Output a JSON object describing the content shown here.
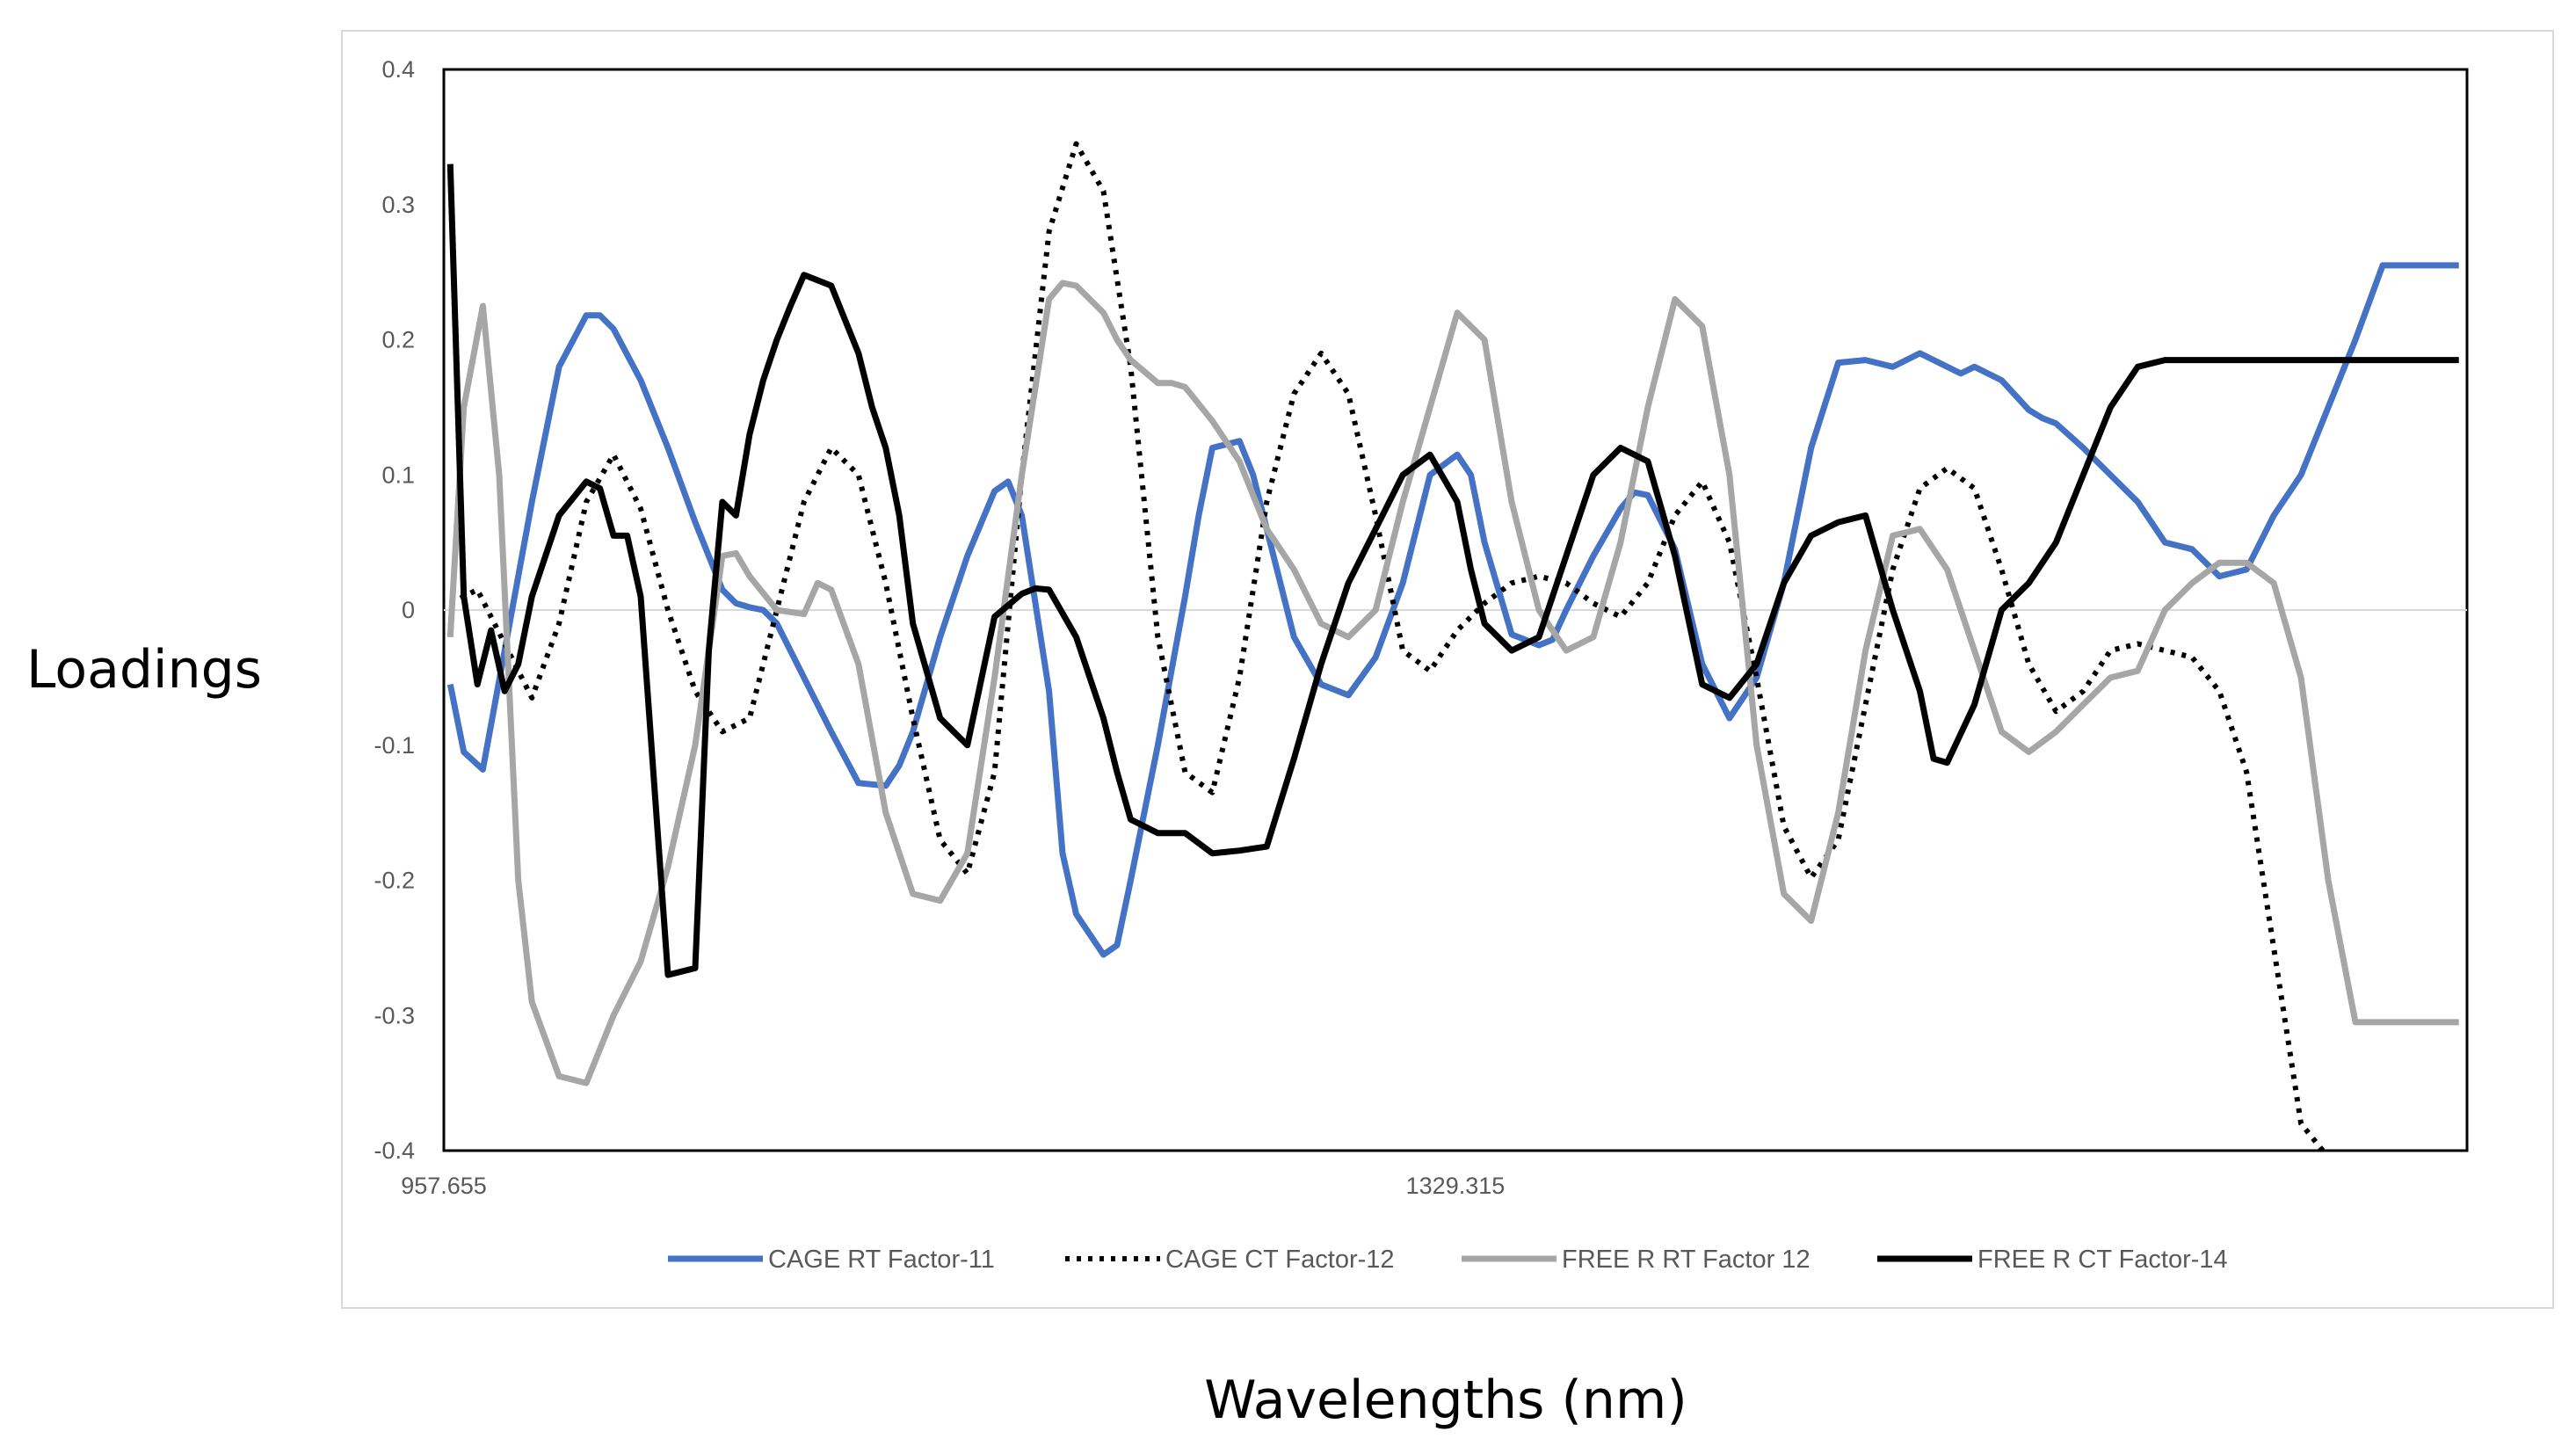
{
  "chart_data": {
    "type": "line",
    "title": "",
    "xlabel": "Wavelengths (nm)",
    "ylabel": "Loadings",
    "xlim": [
      957.655,
      1701.0
    ],
    "ylim": [
      -0.4,
      0.4
    ],
    "y_ticks": [
      "0.4",
      "0.3",
      "0.2",
      "0.1",
      "0",
      "-0.1",
      "-0.2",
      "-0.3",
      "-0.4"
    ],
    "y_tick_values": [
      0.4,
      0.3,
      0.2,
      0.1,
      0,
      -0.1,
      -0.2,
      -0.3,
      -0.4
    ],
    "x_ticks": [
      "957.655",
      "1329.315"
    ],
    "x_tick_values": [
      957.655,
      1329.315
    ],
    "grid": false,
    "legend": "bottom",
    "series": [
      {
        "name": "CAGE RT Factor-11",
        "color": "#4472c4",
        "style": "solid",
        "x": [
          960,
          965,
          972,
          980,
          990,
          1000,
          1010,
          1015,
          1020,
          1030,
          1040,
          1050,
          1060,
          1065,
          1070,
          1075,
          1080,
          1090,
          1100,
          1110,
          1120,
          1125,
          1130,
          1140,
          1150,
          1160,
          1165,
          1170,
          1180,
          1185,
          1190,
          1200,
          1205,
          1210,
          1220,
          1230,
          1235,
          1240,
          1250,
          1255,
          1260,
          1270,
          1280,
          1290,
          1300,
          1310,
          1315,
          1320,
          1330,
          1335,
          1340,
          1350,
          1360,
          1365,
          1370,
          1380,
          1390,
          1395,
          1400,
          1410,
          1420,
          1430,
          1440,
          1450,
          1455,
          1460,
          1470,
          1480,
          1490,
          1500,
          1510,
          1515,
          1520,
          1530,
          1540,
          1545,
          1550,
          1560,
          1570,
          1580,
          1590,
          1600,
          1610,
          1620,
          1630,
          1640,
          1650,
          1660,
          1670,
          1680,
          1690,
          1698
        ],
        "y": [
          -0.055,
          -0.105,
          -0.118,
          -0.03,
          0.08,
          0.18,
          0.218,
          0.218,
          0.208,
          0.17,
          0.12,
          0.065,
          0.015,
          0.005,
          0.002,
          0.0,
          -0.01,
          -0.05,
          -0.09,
          -0.128,
          -0.13,
          -0.115,
          -0.09,
          -0.02,
          0.04,
          0.088,
          0.095,
          0.07,
          -0.06,
          -0.18,
          -0.225,
          -0.255,
          -0.248,
          -0.2,
          -0.1,
          0.01,
          0.07,
          0.12,
          0.125,
          0.1,
          0.06,
          -0.02,
          -0.055,
          -0.063,
          -0.035,
          0.02,
          0.06,
          0.1,
          0.115,
          0.1,
          0.05,
          -0.018,
          -0.026,
          -0.022,
          0.0,
          0.04,
          0.075,
          0.087,
          0.085,
          0.045,
          -0.04,
          -0.08,
          -0.05,
          0.02,
          0.07,
          0.12,
          0.183,
          0.185,
          0.18,
          0.19,
          0.18,
          0.175,
          0.18,
          0.17,
          0.148,
          0.142,
          0.138,
          0.12,
          0.1,
          0.08,
          0.05,
          0.045,
          0.025,
          0.03,
          0.07,
          0.1,
          0.15,
          0.2,
          0.255,
          0.255,
          0.255,
          0.255
        ]
      },
      {
        "name": "CAGE CT Factor-12",
        "color": "#000000",
        "style": "dotted",
        "x": [
          960,
          970,
          980,
          990,
          1000,
          1010,
          1020,
          1030,
          1040,
          1050,
          1060,
          1070,
          1080,
          1090,
          1100,
          1110,
          1120,
          1130,
          1140,
          1150,
          1160,
          1170,
          1180,
          1190,
          1200,
          1210,
          1220,
          1230,
          1240,
          1250,
          1260,
          1270,
          1280,
          1290,
          1300,
          1310,
          1320,
          1330,
          1340,
          1350,
          1360,
          1370,
          1380,
          1390,
          1400,
          1410,
          1420,
          1430,
          1440,
          1450,
          1460,
          1470,
          1480,
          1490,
          1500,
          1510,
          1520,
          1530,
          1540,
          1550,
          1560,
          1570,
          1580,
          1590,
          1600,
          1610,
          1620,
          1630,
          1640,
          1650,
          1660,
          1670,
          1680,
          1690,
          1698
        ],
        "y": [
          0.005,
          0.015,
          -0.025,
          -0.065,
          -0.01,
          0.08,
          0.115,
          0.075,
          0.0,
          -0.06,
          -0.09,
          -0.08,
          0.0,
          0.08,
          0.12,
          0.1,
          0.02,
          -0.08,
          -0.17,
          -0.195,
          -0.12,
          0.1,
          0.28,
          0.345,
          0.31,
          0.18,
          -0.02,
          -0.12,
          -0.135,
          -0.05,
          0.08,
          0.16,
          0.19,
          0.16,
          0.07,
          -0.03,
          -0.045,
          -0.015,
          0.005,
          0.02,
          0.025,
          0.02,
          0.005,
          -0.005,
          0.02,
          0.07,
          0.095,
          0.05,
          -0.05,
          -0.16,
          -0.198,
          -0.17,
          -0.07,
          0.03,
          0.09,
          0.105,
          0.09,
          0.03,
          -0.04,
          -0.075,
          -0.06,
          -0.03,
          -0.025,
          -0.03,
          -0.035,
          -0.06,
          -0.12,
          -0.25,
          -0.38,
          -0.405,
          -0.405,
          -0.405,
          -0.405,
          -0.405,
          -0.405
        ]
      },
      {
        "name": "FREE R RT Factor 12",
        "color": "#a6a6a6",
        "style": "solid",
        "x": [
          960,
          965,
          972,
          978,
          985,
          990,
          1000,
          1010,
          1020,
          1030,
          1040,
          1050,
          1060,
          1065,
          1070,
          1080,
          1090,
          1095,
          1100,
          1110,
          1120,
          1130,
          1140,
          1150,
          1160,
          1170,
          1180,
          1185,
          1190,
          1200,
          1205,
          1210,
          1220,
          1225,
          1230,
          1240,
          1250,
          1260,
          1270,
          1280,
          1290,
          1300,
          1310,
          1320,
          1330,
          1340,
          1345,
          1350,
          1360,
          1370,
          1380,
          1390,
          1400,
          1410,
          1420,
          1430,
          1440,
          1450,
          1460,
          1470,
          1480,
          1490,
          1500,
          1510,
          1520,
          1530,
          1540,
          1550,
          1560,
          1570,
          1580,
          1590,
          1600,
          1610,
          1620,
          1630,
          1640,
          1650,
          1660,
          1670,
          1680,
          1690,
          1698
        ],
        "y": [
          -0.02,
          0.15,
          0.225,
          0.1,
          -0.2,
          -0.29,
          -0.345,
          -0.35,
          -0.3,
          -0.26,
          -0.19,
          -0.1,
          0.04,
          0.042,
          0.025,
          0.0,
          -0.003,
          0.02,
          0.015,
          -0.04,
          -0.15,
          -0.21,
          -0.215,
          -0.18,
          -0.05,
          0.1,
          0.23,
          0.242,
          0.24,
          0.22,
          0.2,
          0.185,
          0.168,
          0.168,
          0.165,
          0.14,
          0.11,
          0.06,
          0.03,
          -0.01,
          -0.02,
          0.0,
          0.08,
          0.15,
          0.22,
          0.2,
          0.14,
          0.08,
          0.0,
          -0.03,
          -0.02,
          0.05,
          0.15,
          0.23,
          0.21,
          0.1,
          -0.1,
          -0.21,
          -0.23,
          -0.15,
          -0.03,
          0.055,
          0.06,
          0.03,
          -0.03,
          -0.09,
          -0.105,
          -0.09,
          -0.07,
          -0.05,
          -0.045,
          0.0,
          0.02,
          0.035,
          0.035,
          0.02,
          -0.05,
          -0.2,
          -0.305,
          -0.305,
          -0.305,
          -0.305,
          -0.305
        ]
      },
      {
        "name": "FREE R CT Factor-14",
        "color": "#000000",
        "style": "solid",
        "x": [
          960,
          965,
          970,
          975,
          980,
          985,
          990,
          1000,
          1010,
          1015,
          1020,
          1025,
          1030,
          1040,
          1050,
          1055,
          1060,
          1065,
          1070,
          1075,
          1080,
          1085,
          1090,
          1100,
          1110,
          1115,
          1120,
          1125,
          1130,
          1140,
          1150,
          1160,
          1170,
          1175,
          1180,
          1190,
          1200,
          1205,
          1210,
          1220,
          1230,
          1240,
          1250,
          1260,
          1270,
          1280,
          1290,
          1300,
          1310,
          1320,
          1330,
          1335,
          1340,
          1350,
          1360,
          1370,
          1380,
          1390,
          1400,
          1410,
          1420,
          1430,
          1440,
          1445,
          1450,
          1460,
          1470,
          1480,
          1490,
          1500,
          1505,
          1510,
          1520,
          1530,
          1540,
          1550,
          1560,
          1570,
          1580,
          1590,
          1600,
          1610,
          1620,
          1630,
          1640,
          1650,
          1660,
          1670,
          1680,
          1690,
          1698
        ],
        "y": [
          0.33,
          0.01,
          -0.055,
          -0.015,
          -0.06,
          -0.04,
          0.01,
          0.07,
          0.095,
          0.09,
          0.055,
          0.055,
          0.01,
          -0.27,
          -0.265,
          -0.03,
          0.08,
          0.07,
          0.13,
          0.17,
          0.2,
          0.225,
          0.248,
          0.24,
          0.19,
          0.15,
          0.12,
          0.07,
          -0.01,
          -0.08,
          -0.1,
          -0.005,
          0.012,
          0.016,
          0.015,
          -0.02,
          -0.08,
          -0.12,
          -0.155,
          -0.165,
          -0.165,
          -0.18,
          -0.178,
          -0.175,
          -0.11,
          -0.04,
          0.02,
          0.06,
          0.1,
          0.115,
          0.08,
          0.03,
          -0.01,
          -0.03,
          -0.02,
          0.04,
          0.1,
          0.12,
          0.11,
          0.04,
          -0.055,
          -0.065,
          -0.04,
          -0.01,
          0.02,
          0.055,
          0.065,
          0.07,
          0.0,
          -0.06,
          -0.11,
          -0.113,
          -0.07,
          0.0,
          0.02,
          0.05,
          0.1,
          0.15,
          0.18,
          0.185,
          0.185,
          0.185,
          0.185,
          0.185,
          0.185,
          0.185,
          0.185,
          0.185,
          0.185,
          0.185,
          0.185
        ]
      }
    ]
  }
}
